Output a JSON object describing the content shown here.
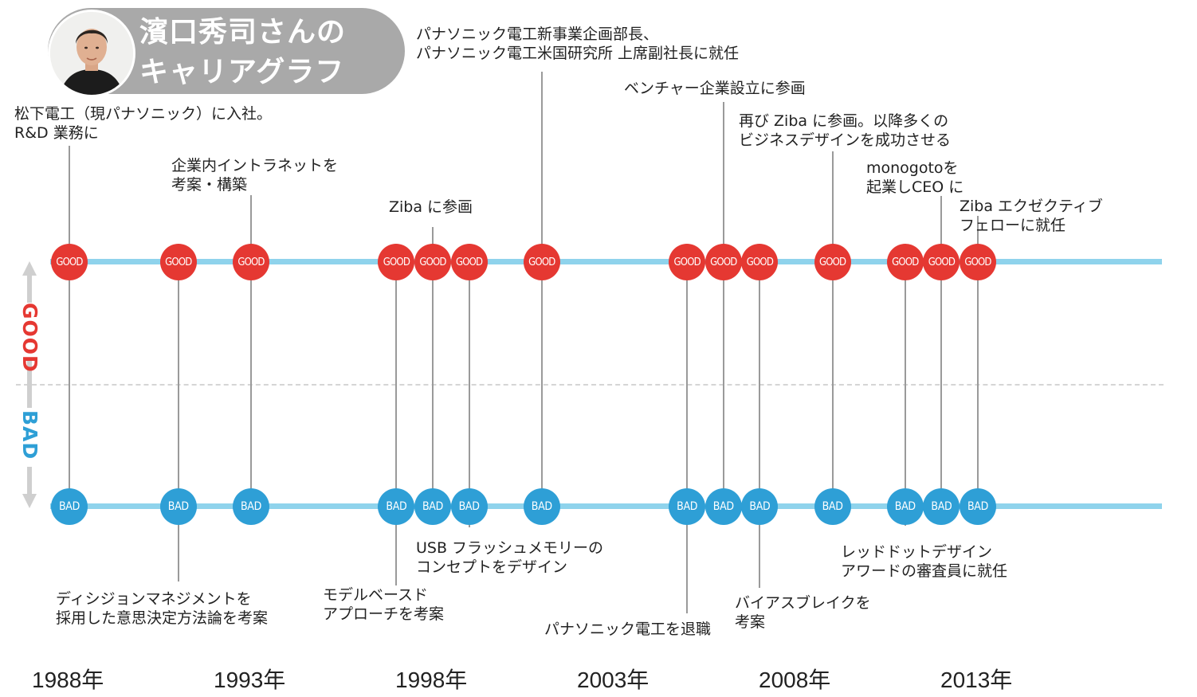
{
  "header": {
    "title_line1": "濱口秀司さんの",
    "title_line2": "キャリアグラフ",
    "colors": {
      "pill": "#a9a9a9",
      "text": "#ffffff"
    }
  },
  "axis": {
    "good_label": "GOOD",
    "bad_label": "BAD"
  },
  "node_labels": {
    "good": "GOOD",
    "bad": "BAD"
  },
  "colors": {
    "good": "#e53832",
    "bad": "#2e9fd6",
    "track": "#8fd3ec",
    "connector": "#9a9a9a"
  },
  "years": [
    "1988年",
    "1993年",
    "1998年",
    "2003年",
    "2008年",
    "2013年"
  ],
  "events": [
    {
      "year": 1988.0,
      "level": "good",
      "lines": [
        "松下電工（現パナソニック）に入社。",
        "R&D 業務に"
      ]
    },
    {
      "year": 1991.0,
      "level": "bad",
      "lines": [
        "ディシジョンマネジメントを",
        "採用した意思決定方法論を考案"
      ]
    },
    {
      "year": 1993.0,
      "level": "good",
      "lines": [
        "企業内イントラネットを",
        "考案・構築"
      ]
    },
    {
      "year": 1997.0,
      "level": "bad",
      "lines": [
        "モデルベースド",
        "アプローチを考案"
      ]
    },
    {
      "year": 1998.0,
      "level": "good",
      "lines": [
        "Ziba に参画"
      ]
    },
    {
      "year": 1999.0,
      "level": "bad",
      "lines": [
        "USB フラッシュメモリーの",
        "コンセプトをデザイン"
      ]
    },
    {
      "year": 2001.0,
      "level": "good",
      "lines": [
        "パナソニック電工新事業企画部長、",
        "パナソニック電工米国研究所 上席副社長に就任"
      ]
    },
    {
      "year": 2005.0,
      "level": "bad",
      "lines": [
        "パナソニック電工を退職"
      ]
    },
    {
      "year": 2006.0,
      "level": "good",
      "lines": [
        "ベンチャー企業設立に参画"
      ]
    },
    {
      "year": 2007.0,
      "level": "bad",
      "lines": [
        "バイアスブレイクを",
        "考案"
      ]
    },
    {
      "year": 2009.0,
      "level": "good",
      "lines": [
        "再び Ziba に参画。以降多くの",
        "ビジネスデザインを成功させる"
      ]
    },
    {
      "year": 2011.0,
      "level": "bad",
      "lines": [
        "レッドドットデザイン",
        "アワードの審査員に就任"
      ]
    },
    {
      "year": 2012.0,
      "level": "good",
      "lines": [
        "monogotoを",
        "起業しCEO に"
      ]
    },
    {
      "year": 2013.0,
      "level": "good",
      "lines": [
        "Ziba エクゼクティブ",
        "フェローに就任"
      ]
    }
  ],
  "node_years": [
    1988,
    1991,
    1993,
    1997,
    1998,
    1999,
    2001,
    2005,
    2006,
    2007,
    2009,
    2011,
    2012,
    2013
  ]
}
